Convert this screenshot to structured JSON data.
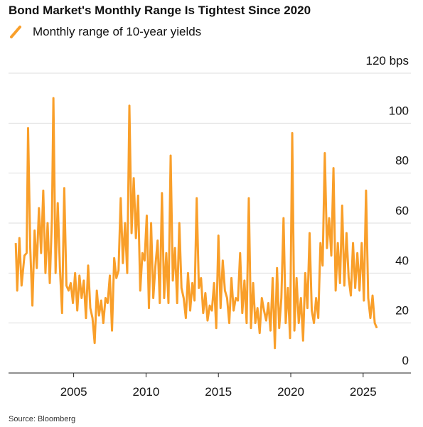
{
  "chart_data": {
    "type": "line",
    "title": "Bond Market's Monthly Range Is Tightest Since 2020",
    "source": "Source: Bloomberg",
    "xlim": [
      2000.5,
      2028.3
    ],
    "xticks": [
      2005,
      2010,
      2015,
      2020,
      2025
    ],
    "ylim": [
      0,
      120
    ],
    "yticks": [
      0,
      20,
      40,
      60,
      80,
      100,
      {
        "value": 120,
        "label": "120 bps"
      }
    ],
    "grid": true,
    "series": [
      {
        "name": "Monthly range of 10-year yields",
        "color": "#f99f2a",
        "x": [
          2001.0,
          2001.1,
          2001.25,
          2001.4,
          2001.6,
          2001.75,
          2001.85,
          2002.0,
          2002.15,
          2002.3,
          2002.45,
          2002.6,
          2002.75,
          2002.9,
          2003.05,
          2003.2,
          2003.35,
          2003.5,
          2003.6,
          2003.75,
          2003.9,
          2004.05,
          2004.2,
          2004.35,
          2004.5,
          2004.65,
          2004.8,
          2004.95,
          2005.1,
          2005.25,
          2005.4,
          2005.55,
          2005.7,
          2005.85,
          2006.0,
          2006.15,
          2006.3,
          2006.45,
          2006.6,
          2006.75,
          2006.9,
          2007.05,
          2007.2,
          2007.35,
          2007.5,
          2007.65,
          2007.8,
          2007.95,
          2008.1,
          2008.25,
          2008.4,
          2008.55,
          2008.7,
          2008.85,
          2009.0,
          2009.15,
          2009.3,
          2009.45,
          2009.6,
          2009.75,
          2009.9,
          2010.05,
          2010.2,
          2010.35,
          2010.5,
          2010.65,
          2010.8,
          2010.95,
          2011.1,
          2011.25,
          2011.4,
          2011.55,
          2011.7,
          2011.85,
          2012.0,
          2012.15,
          2012.3,
          2012.45,
          2012.6,
          2012.75,
          2012.9,
          2013.05,
          2013.2,
          2013.35,
          2013.5,
          2013.65,
          2013.8,
          2013.95,
          2014.1,
          2014.25,
          2014.4,
          2014.55,
          2014.7,
          2014.85,
          2015.0,
          2015.15,
          2015.3,
          2015.45,
          2015.6,
          2015.75,
          2015.9,
          2016.05,
          2016.2,
          2016.35,
          2016.5,
          2016.65,
          2016.8,
          2016.95,
          2017.1,
          2017.25,
          2017.4,
          2017.55,
          2017.7,
          2017.85,
          2018.0,
          2018.15,
          2018.3,
          2018.45,
          2018.6,
          2018.75,
          2018.9,
          2019.05,
          2019.2,
          2019.35,
          2019.5,
          2019.65,
          2019.8,
          2019.95,
          2020.1,
          2020.25,
          2020.4,
          2020.55,
          2020.7,
          2020.85,
          2021.0,
          2021.15,
          2021.3,
          2021.45,
          2021.6,
          2021.75,
          2021.9,
          2022.05,
          2022.2,
          2022.35,
          2022.5,
          2022.65,
          2022.8,
          2022.95,
          2023.1,
          2023.25,
          2023.4,
          2023.55,
          2023.7,
          2023.85,
          2024.0,
          2024.15,
          2024.3,
          2024.45,
          2024.6,
          2024.75,
          2024.9,
          2025.05,
          2025.2,
          2025.35,
          2025.5,
          2025.65,
          2025.8,
          2025.95
        ],
        "values": [
          52,
          33,
          54,
          35,
          47,
          48,
          98,
          50,
          27,
          57,
          42,
          66,
          48,
          73,
          40,
          60,
          36,
          62,
          110,
          40,
          68,
          42,
          24,
          74,
          35,
          33,
          36,
          28,
          40,
          25,
          39,
          30,
          37,
          22,
          43,
          26,
          22,
          12,
          33,
          23,
          29,
          20,
          30,
          28,
          39,
          17,
          46,
          38,
          41,
          70,
          44,
          60,
          40,
          107,
          56,
          78,
          54,
          71,
          33,
          48,
          45,
          63,
          26,
          60,
          30,
          43,
          53,
          28,
          72,
          30,
          48,
          28,
          87,
          37,
          50,
          28,
          60,
          34,
          30,
          22,
          40,
          25,
          36,
          29,
          70,
          34,
          38,
          24,
          32,
          21,
          27,
          25,
          36,
          18,
          55,
          26,
          45,
          33,
          30,
          20,
          38,
          25,
          30,
          29,
          48,
          24,
          37,
          20,
          70,
          18,
          36,
          20,
          26,
          16,
          30,
          25,
          21,
          28,
          17,
          38,
          10,
          42,
          18,
          30,
          62,
          20,
          34,
          14,
          96,
          17,
          38,
          20,
          30,
          13,
          40,
          26,
          56,
          25,
          20,
          30,
          22,
          52,
          43,
          88,
          50,
          62,
          47,
          82,
          33,
          52,
          36,
          67,
          35,
          56,
          38,
          31,
          52,
          34,
          48,
          33,
          52,
          29,
          73,
          30,
          22,
          31,
          20,
          18
        ]
      }
    ]
  }
}
